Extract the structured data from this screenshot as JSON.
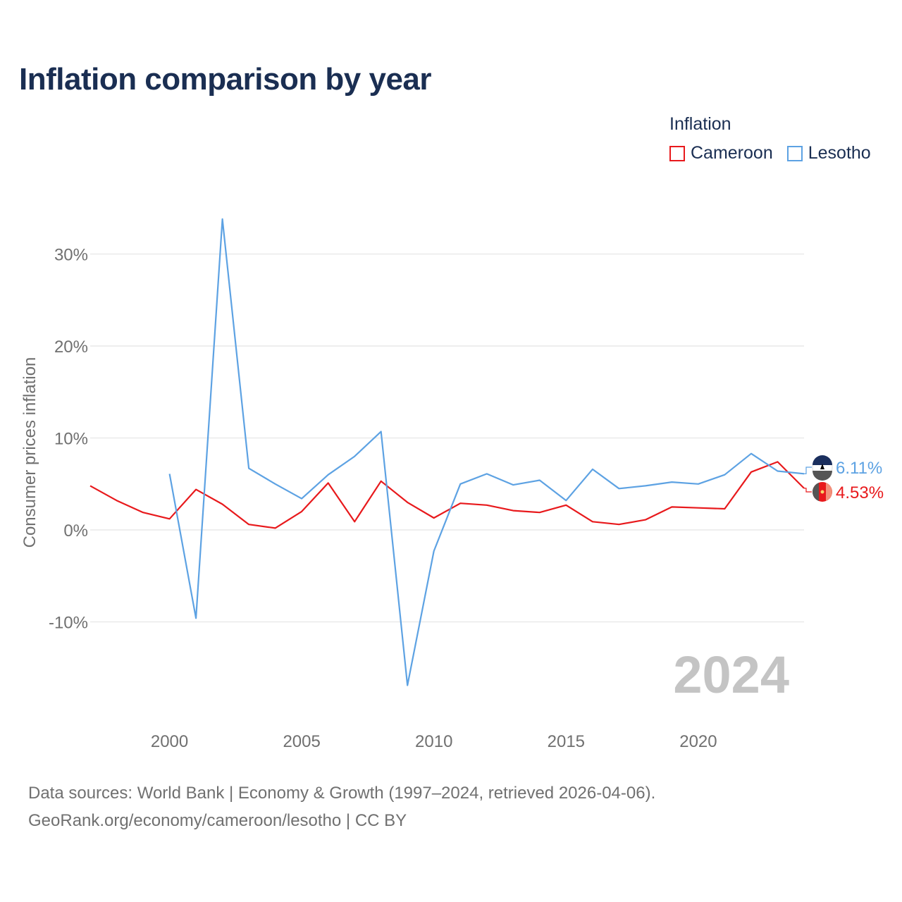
{
  "title": "Inflation comparison by year",
  "legend": {
    "title": "Inflation",
    "items": [
      {
        "label": "Cameroon",
        "color": "#e8191c"
      },
      {
        "label": "Lesotho",
        "color": "#5da2e3"
      }
    ]
  },
  "source": {
    "line1": "Data sources: World Bank | Economy & Growth (1997–2024, retrieved 2026-04-06).",
    "line2": "GeoRank.org/economy/cameroon/lesotho | CC BY"
  },
  "chart_data": {
    "type": "line",
    "title": "Inflation comparison by year",
    "xlabel": "",
    "ylabel": "Consumer prices inflation",
    "xlim": [
      1997,
      2024
    ],
    "ylim": [
      -20,
      36
    ],
    "y_ticks": [
      -10,
      0,
      10,
      20,
      30
    ],
    "y_tick_labels": [
      "-10%",
      "0%",
      "10%",
      "20%",
      "30%"
    ],
    "x_ticks": [
      2000,
      2005,
      2010,
      2015,
      2020
    ],
    "x_tick_labels": [
      "2000",
      "2005",
      "2010",
      "2015",
      "2020"
    ],
    "grid": true,
    "year_watermark": "2024",
    "series": [
      {
        "name": "Cameroon",
        "color": "#e8191c",
        "end_label": "4.53%",
        "x": [
          1997,
          1998,
          1999,
          2000,
          2001,
          2002,
          2003,
          2004,
          2005,
          2006,
          2007,
          2008,
          2009,
          2010,
          2011,
          2012,
          2013,
          2014,
          2015,
          2016,
          2017,
          2018,
          2019,
          2020,
          2021,
          2022,
          2023,
          2024
        ],
        "values": [
          4.8,
          3.2,
          1.9,
          1.2,
          4.4,
          2.8,
          0.6,
          0.2,
          2.0,
          5.1,
          0.9,
          5.3,
          3.0,
          1.3,
          2.9,
          2.7,
          2.1,
          1.9,
          2.7,
          0.9,
          0.6,
          1.1,
          2.5,
          2.4,
          2.3,
          6.3,
          7.4,
          4.53
        ]
      },
      {
        "name": "Lesotho",
        "color": "#5da2e3",
        "end_label": "6.11%",
        "x": [
          2000,
          2001,
          2002,
          2003,
          2004,
          2005,
          2006,
          2007,
          2008,
          2009,
          2010,
          2011,
          2012,
          2013,
          2014,
          2015,
          2016,
          2017,
          2018,
          2019,
          2020,
          2021,
          2022,
          2023,
          2024
        ],
        "values": [
          6.1,
          -9.6,
          33.8,
          6.7,
          5.0,
          3.4,
          6.0,
          8.0,
          10.7,
          -16.9,
          -2.3,
          5.0,
          6.1,
          4.9,
          5.4,
          3.2,
          6.6,
          4.5,
          4.8,
          5.2,
          5.0,
          6.0,
          8.3,
          6.4,
          6.11
        ]
      }
    ]
  }
}
